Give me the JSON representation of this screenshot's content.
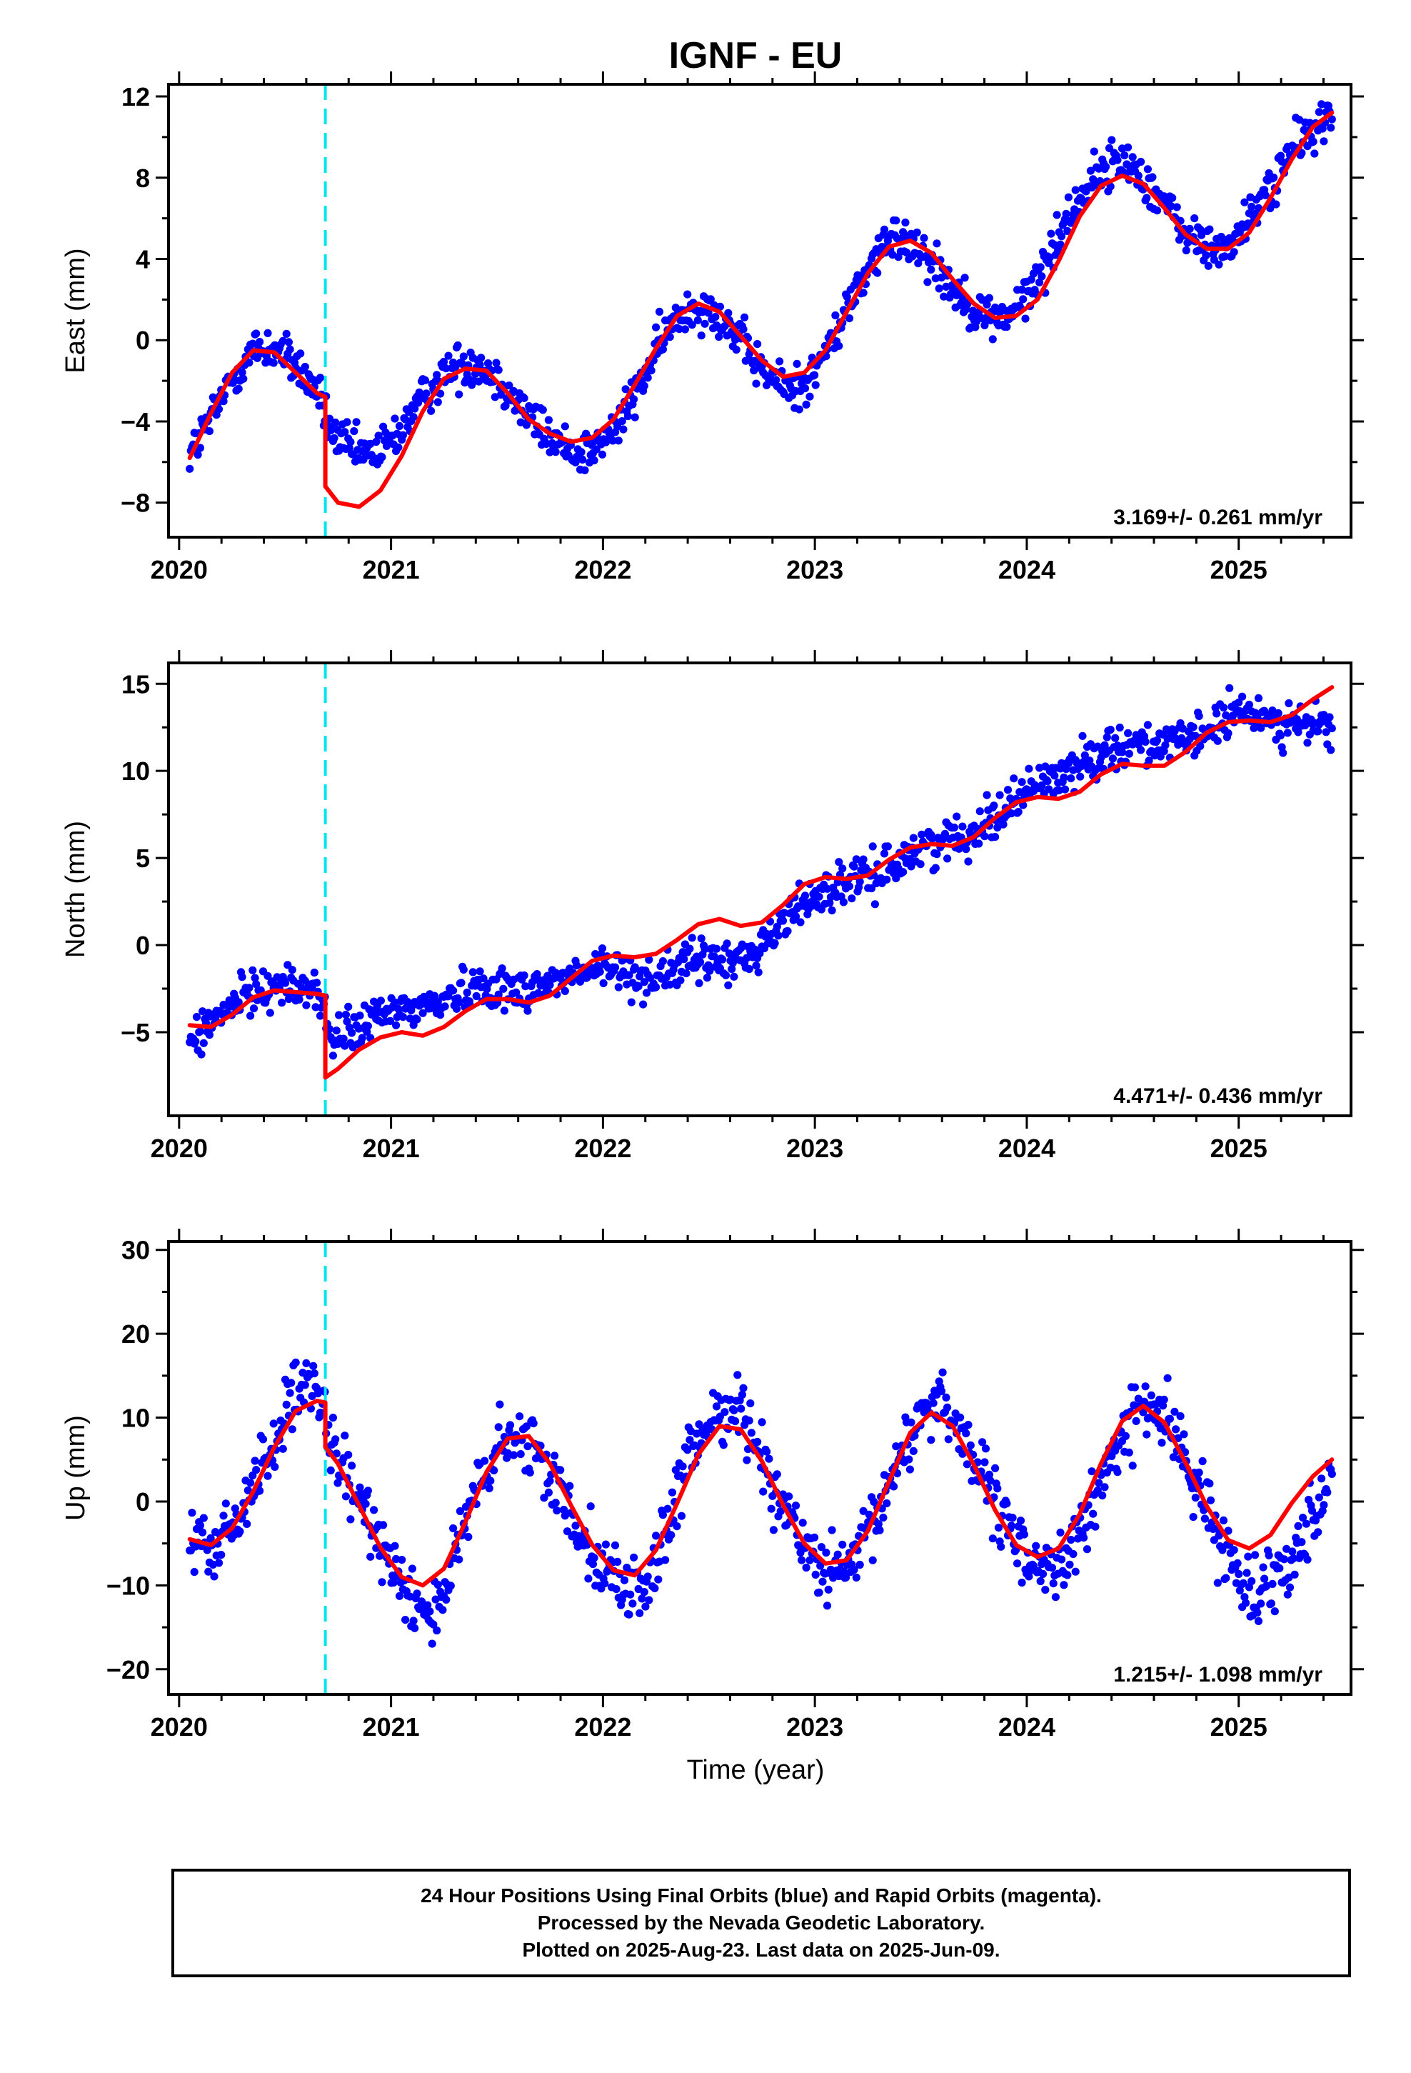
{
  "figure": {
    "title": "IGNF - EU",
    "xlabel": "Time (year)",
    "footer_lines": [
      "24 Hour Positions Using Final Orbits (blue) and Rapid Orbits (magenta).",
      "Processed by the Nevada Geodetic Laboratory.",
      "Plotted on 2025-Aug-23. Last data on 2025-Jun-09."
    ]
  },
  "chart_data": [
    {
      "type": "scatter",
      "panel": "east",
      "title": "IGNF - EU",
      "ylabel": "East (mm)",
      "xlim": [
        2019.95,
        2025.53
      ],
      "ylim": [
        -9.7,
        12.6
      ],
      "xticks": [
        2020,
        2021,
        2022,
        2023,
        2024,
        2025
      ],
      "yticks": [
        -8,
        -4,
        0,
        4,
        8,
        12
      ],
      "rate_label": "3.169+/- 0.261 mm/yr",
      "colors": {
        "points": "#0000ff",
        "fit": "#ff0000",
        "offset_line": "#00e5ee"
      },
      "offset_epoch": 2020.69,
      "observations": {
        "x": [
          2020.05,
          2020.15,
          2020.25,
          2020.35,
          2020.45,
          2020.55,
          2020.65,
          2020.72,
          2020.8,
          2020.9,
          2021.0,
          2021.1,
          2021.2,
          2021.3,
          2021.4,
          2021.5,
          2021.6,
          2021.7,
          2021.8,
          2021.9,
          2022.0,
          2022.1,
          2022.2,
          2022.3,
          2022.4,
          2022.5,
          2022.6,
          2022.7,
          2022.8,
          2022.9,
          2023.0,
          2023.1,
          2023.2,
          2023.3,
          2023.4,
          2023.5,
          2023.6,
          2023.7,
          2023.8,
          2023.9,
          2024.0,
          2024.1,
          2024.2,
          2024.3,
          2024.4,
          2024.5,
          2024.6,
          2024.7,
          2024.8,
          2024.9,
          2025.0,
          2025.1,
          2025.2,
          2025.3,
          2025.4,
          2025.44
        ],
        "y": [
          -5.6,
          -3.9,
          -1.9,
          -0.5,
          -0.4,
          -1.2,
          -2.5,
          -4.6,
          -5.4,
          -5.7,
          -5.0,
          -3.6,
          -2.2,
          -1.3,
          -1.1,
          -1.8,
          -3.1,
          -4.3,
          -5.2,
          -5.5,
          -5.1,
          -3.7,
          -1.6,
          0.4,
          1.6,
          1.7,
          0.6,
          -0.8,
          -2.0,
          -2.4,
          -1.6,
          0.4,
          2.6,
          4.3,
          5.1,
          4.6,
          3.3,
          2.0,
          1.2,
          1.1,
          2.1,
          4.0,
          6.2,
          7.8,
          8.7,
          8.6,
          7.4,
          5.9,
          4.8,
          4.4,
          5.1,
          6.8,
          8.5,
          9.9,
          10.8,
          10.9
        ],
        "spread": 1.0
      },
      "model_fit": {
        "x": [
          2020.05,
          2020.15,
          2020.25,
          2020.35,
          2020.45,
          2020.55,
          2020.65,
          2020.69,
          2020.69,
          2020.75,
          2020.85,
          2020.95,
          2021.05,
          2021.15,
          2021.25,
          2021.35,
          2021.45,
          2021.55,
          2021.65,
          2021.75,
          2021.85,
          2021.95,
          2022.05,
          2022.15,
          2022.25,
          2022.35,
          2022.45,
          2022.55,
          2022.65,
          2022.75,
          2022.85,
          2022.95,
          2023.05,
          2023.15,
          2023.25,
          2023.35,
          2023.45,
          2023.55,
          2023.65,
          2023.75,
          2023.85,
          2023.95,
          2024.05,
          2024.15,
          2024.25,
          2024.35,
          2024.45,
          2024.55,
          2024.65,
          2024.75,
          2024.85,
          2024.95,
          2025.05,
          2025.15,
          2025.25,
          2025.35,
          2025.44
        ],
        "y": [
          -5.8,
          -3.6,
          -1.6,
          -0.5,
          -0.6,
          -1.6,
          -2.6,
          -2.8,
          -7.2,
          -8.0,
          -8.2,
          -7.4,
          -5.7,
          -3.5,
          -1.9,
          -1.4,
          -1.5,
          -2.6,
          -3.9,
          -4.6,
          -5.0,
          -4.8,
          -3.9,
          -2.2,
          -0.4,
          1.2,
          1.8,
          1.4,
          0.2,
          -1.0,
          -1.8,
          -1.6,
          -0.5,
          1.4,
          3.3,
          4.6,
          4.9,
          4.3,
          3.0,
          1.8,
          1.1,
          1.2,
          2.0,
          3.9,
          6.1,
          7.6,
          8.1,
          7.7,
          6.5,
          5.2,
          4.5,
          4.5,
          5.3,
          7.0,
          8.9,
          10.5,
          11.2
        ]
      }
    },
    {
      "type": "scatter",
      "panel": "north",
      "ylabel": "North (mm)",
      "xlim": [
        2019.95,
        2025.53
      ],
      "ylim": [
        -9.8,
        16.2
      ],
      "xticks": [
        2020,
        2021,
        2022,
        2023,
        2024,
        2025
      ],
      "yticks": [
        -5,
        0,
        5,
        10,
        15
      ],
      "rate_label": "4.471+/- 0.436 mm/yr",
      "colors": {
        "points": "#0000ff",
        "fit": "#ff0000",
        "offset_line": "#00e5ee"
      },
      "offset_epoch": 2020.69,
      "observations": {
        "x": [
          2020.05,
          2020.15,
          2020.25,
          2020.35,
          2020.45,
          2020.55,
          2020.65,
          2020.72,
          2020.8,
          2020.9,
          2021.0,
          2021.1,
          2021.2,
          2021.3,
          2021.4,
          2021.5,
          2021.6,
          2021.7,
          2021.8,
          2021.9,
          2022.0,
          2022.1,
          2022.2,
          2022.3,
          2022.4,
          2022.5,
          2022.6,
          2022.7,
          2022.8,
          2022.9,
          2023.0,
          2023.1,
          2023.2,
          2023.3,
          2023.4,
          2023.5,
          2023.6,
          2023.7,
          2023.8,
          2023.9,
          2024.0,
          2024.1,
          2024.2,
          2024.3,
          2024.4,
          2024.5,
          2024.6,
          2024.7,
          2024.8,
          2024.9,
          2025.0,
          2025.1,
          2025.2,
          2025.3,
          2025.4,
          2025.44
        ],
        "y": [
          -5.5,
          -4.6,
          -3.4,
          -2.6,
          -2.3,
          -2.5,
          -2.4,
          -5.6,
          -5.0,
          -4.4,
          -3.8,
          -3.6,
          -3.4,
          -2.8,
          -2.3,
          -2.4,
          -2.6,
          -2.3,
          -2.0,
          -1.7,
          -1.3,
          -1.6,
          -1.9,
          -1.6,
          -1.1,
          -0.8,
          -1.1,
          -0.5,
          0.6,
          2.0,
          2.9,
          3.3,
          3.7,
          4.1,
          4.9,
          5.6,
          6.0,
          6.3,
          7.0,
          7.9,
          8.9,
          9.5,
          10.0,
          10.7,
          11.4,
          11.6,
          11.6,
          11.5,
          11.9,
          12.7,
          13.3,
          13.2,
          12.8,
          12.6,
          12.6,
          12.5
        ],
        "spread": 1.1
      },
      "model_fit": {
        "x": [
          2020.05,
          2020.15,
          2020.25,
          2020.35,
          2020.45,
          2020.55,
          2020.65,
          2020.69,
          2020.69,
          2020.75,
          2020.85,
          2020.95,
          2021.05,
          2021.15,
          2021.25,
          2021.35,
          2021.45,
          2021.55,
          2021.65,
          2021.75,
          2021.85,
          2021.95,
          2022.05,
          2022.15,
          2022.25,
          2022.35,
          2022.45,
          2022.55,
          2022.65,
          2022.75,
          2022.85,
          2022.95,
          2023.05,
          2023.15,
          2023.25,
          2023.35,
          2023.45,
          2023.55,
          2023.65,
          2023.75,
          2023.85,
          2023.95,
          2024.05,
          2024.15,
          2024.25,
          2024.35,
          2024.45,
          2024.55,
          2024.65,
          2024.75,
          2024.85,
          2024.95,
          2025.05,
          2025.15,
          2025.25,
          2025.35,
          2025.44
        ],
        "y": [
          -4.6,
          -4.7,
          -4.0,
          -3.0,
          -2.6,
          -2.7,
          -2.8,
          -2.9,
          -7.6,
          -7.1,
          -6.0,
          -5.3,
          -5.0,
          -5.2,
          -4.7,
          -3.8,
          -3.1,
          -3.1,
          -3.3,
          -2.9,
          -1.9,
          -0.9,
          -0.6,
          -0.7,
          -0.5,
          0.3,
          1.2,
          1.5,
          1.1,
          1.3,
          2.3,
          3.5,
          3.9,
          3.8,
          4.0,
          4.9,
          5.6,
          5.8,
          5.7,
          6.2,
          7.3,
          8.2,
          8.5,
          8.4,
          8.8,
          9.8,
          10.4,
          10.3,
          10.3,
          11.1,
          12.2,
          12.8,
          12.9,
          12.8,
          13.2,
          14.1,
          14.8
        ]
      }
    },
    {
      "type": "scatter",
      "panel": "up",
      "ylabel": "Up (mm)",
      "xlim": [
        2019.95,
        2025.53
      ],
      "ylim": [
        -23,
        31
      ],
      "xticks": [
        2020,
        2021,
        2022,
        2023,
        2024,
        2025
      ],
      "yticks": [
        -20,
        -10,
        0,
        10,
        20,
        30
      ],
      "rate_label": "1.215+/- 1.098 mm/yr",
      "colors": {
        "points": "#0000ff",
        "fit": "#ff0000",
        "offset_line": "#00e5ee"
      },
      "offset_epoch": 2020.69,
      "observations": {
        "x": [
          2020.05,
          2020.15,
          2020.25,
          2020.35,
          2020.45,
          2020.55,
          2020.65,
          2020.72,
          2020.8,
          2020.9,
          2021.0,
          2021.1,
          2021.2,
          2021.3,
          2021.4,
          2021.5,
          2021.6,
          2021.7,
          2021.8,
          2021.9,
          2022.0,
          2022.1,
          2022.2,
          2022.3,
          2022.4,
          2022.5,
          2022.6,
          2022.7,
          2022.8,
          2022.9,
          2023.0,
          2023.1,
          2023.2,
          2023.3,
          2023.4,
          2023.5,
          2023.6,
          2023.7,
          2023.8,
          2023.9,
          2024.0,
          2024.1,
          2024.2,
          2024.3,
          2024.4,
          2024.5,
          2024.6,
          2024.7,
          2024.8,
          2024.9,
          2025.0,
          2025.1,
          2025.2,
          2025.3,
          2025.4,
          2025.44
        ],
        "y": [
          -5.0,
          -6.0,
          -3.5,
          2.0,
          7.5,
          12.5,
          13.5,
          6.0,
          2.0,
          -2.5,
          -6.5,
          -11.5,
          -13.5,
          -7.0,
          1.0,
          6.0,
          7.5,
          5.5,
          1.0,
          -3.5,
          -7.5,
          -10.5,
          -10.0,
          -4.0,
          4.5,
          9.5,
          12.0,
          8.5,
          2.5,
          -3.0,
          -7.5,
          -9.0,
          -7.0,
          -1.5,
          5.5,
          10.5,
          12.5,
          8.0,
          2.0,
          -3.0,
          -6.5,
          -8.0,
          -6.5,
          -1.5,
          5.5,
          10.0,
          11.5,
          8.0,
          2.0,
          -4.0,
          -9.0,
          -10.5,
          -8.0,
          -4.0,
          1.0,
          3.5
        ],
        "spread": 3.6
      },
      "model_fit": {
        "x": [
          2020.05,
          2020.15,
          2020.25,
          2020.35,
          2020.45,
          2020.55,
          2020.65,
          2020.69,
          2020.69,
          2020.75,
          2020.85,
          2020.95,
          2021.05,
          2021.15,
          2021.25,
          2021.35,
          2021.45,
          2021.55,
          2021.65,
          2021.75,
          2021.85,
          2021.95,
          2022.05,
          2022.15,
          2022.25,
          2022.35,
          2022.45,
          2022.55,
          2022.65,
          2022.75,
          2022.85,
          2022.95,
          2023.05,
          2023.15,
          2023.25,
          2023.35,
          2023.45,
          2023.55,
          2023.65,
          2023.75,
          2023.85,
          2023.95,
          2024.05,
          2024.15,
          2024.25,
          2024.35,
          2024.45,
          2024.55,
          2024.65,
          2024.75,
          2024.85,
          2024.95,
          2025.05,
          2025.15,
          2025.25,
          2025.35,
          2025.44
        ],
        "y": [
          -4.5,
          -5.2,
          -3.2,
          1.2,
          6.5,
          10.8,
          12.0,
          11.8,
          6.5,
          4.5,
          -0.5,
          -5.5,
          -9.0,
          -10.0,
          -8.0,
          -2.5,
          3.5,
          7.5,
          7.8,
          4.5,
          -0.5,
          -5.2,
          -8.2,
          -8.8,
          -5.8,
          -0.2,
          5.6,
          9.0,
          8.6,
          4.8,
          -0.4,
          -5.0,
          -7.4,
          -7.0,
          -3.5,
          2.4,
          8.2,
          10.6,
          9.0,
          4.4,
          -1.0,
          -5.2,
          -6.6,
          -5.6,
          -1.5,
          4.5,
          9.6,
          11.4,
          9.4,
          4.6,
          -0.6,
          -4.6,
          -5.6,
          -4.0,
          -0.2,
          3.0,
          5.0
        ]
      }
    }
  ]
}
